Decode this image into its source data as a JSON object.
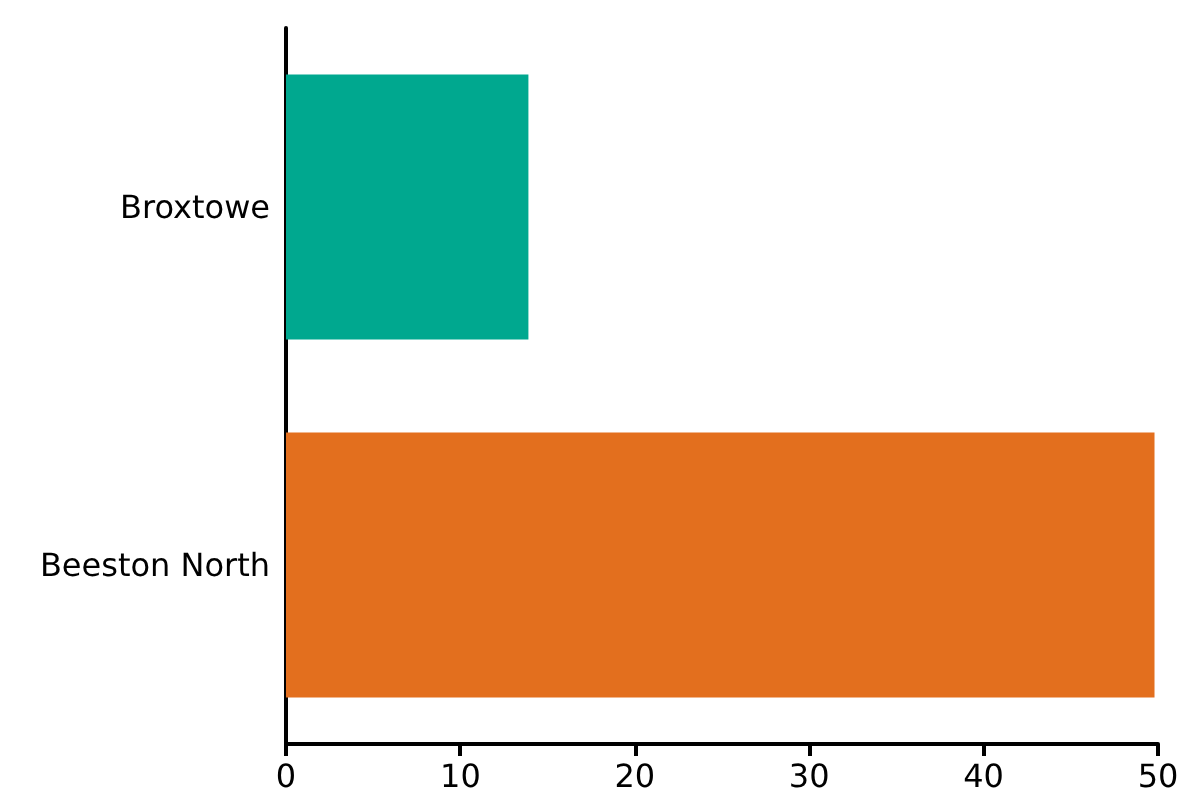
{
  "chart_data": {
    "type": "bar",
    "orientation": "horizontal",
    "categories": [
      "Broxtowe",
      "Beeston North"
    ],
    "values": [
      13.9,
      49.8
    ],
    "colors": [
      "#00a88f",
      "#e36f1e"
    ],
    "xlim": [
      0,
      50
    ],
    "xticks": [
      0,
      10,
      20,
      30,
      40,
      50
    ],
    "grid": false
  }
}
